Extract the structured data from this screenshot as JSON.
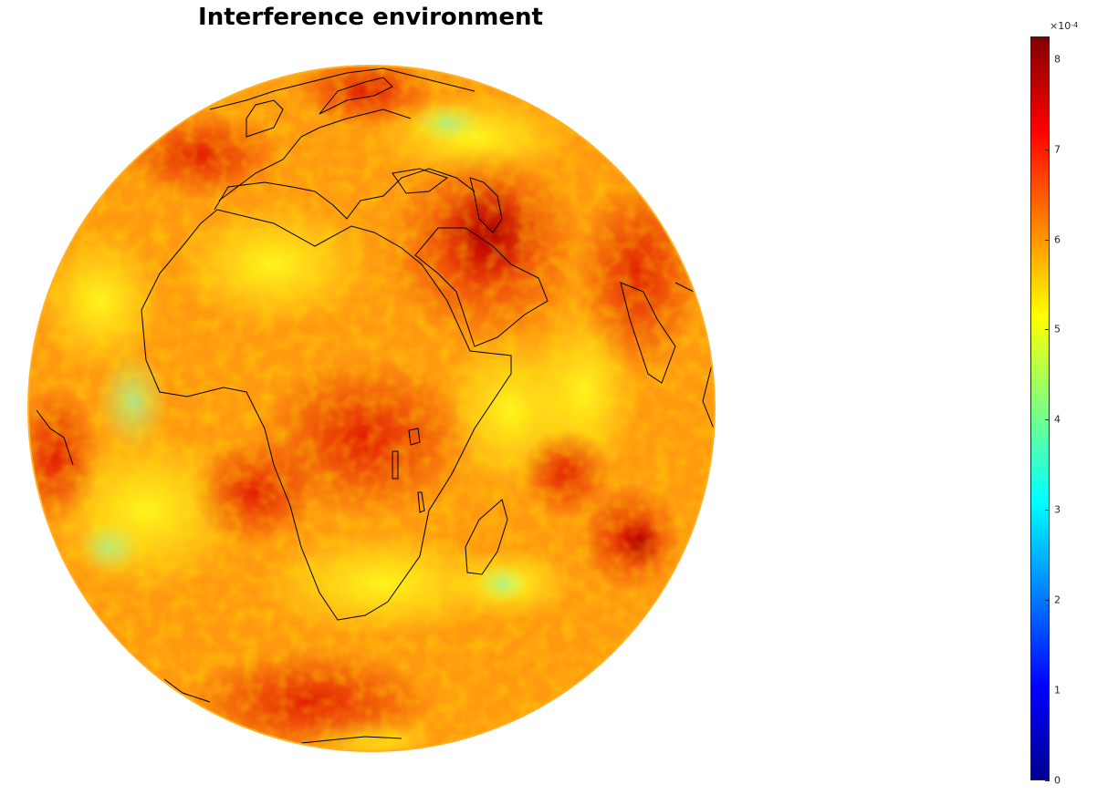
{
  "title": "Interference environment",
  "colorbar": {
    "exponent_prefix": "×10",
    "exponent_power": "-4",
    "ticks": [
      "0",
      "1",
      "2",
      "3",
      "4",
      "5",
      "6",
      "7",
      "8"
    ],
    "range": [
      0,
      8.25
    ],
    "colormap": "jet"
  },
  "map": {
    "projection": "orthographic",
    "center": "Africa",
    "coastline_color": "#000000"
  }
}
